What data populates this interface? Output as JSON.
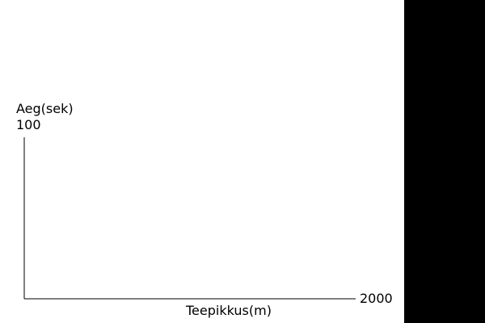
{
  "chart_data": {
    "type": "line",
    "title": "",
    "xlabel": "Teepikkus(m)",
    "ylabel": "Aeg(sek)",
    "xlim": [
      0,
      2000
    ],
    "ylim": [
      0,
      100
    ],
    "x_ticks": [
      "2000"
    ],
    "y_ticks": [
      "100"
    ],
    "series": [],
    "grid": false
  },
  "colors": {
    "background": "#ffffff",
    "side_panel": "#000000",
    "axis": "#000000"
  }
}
